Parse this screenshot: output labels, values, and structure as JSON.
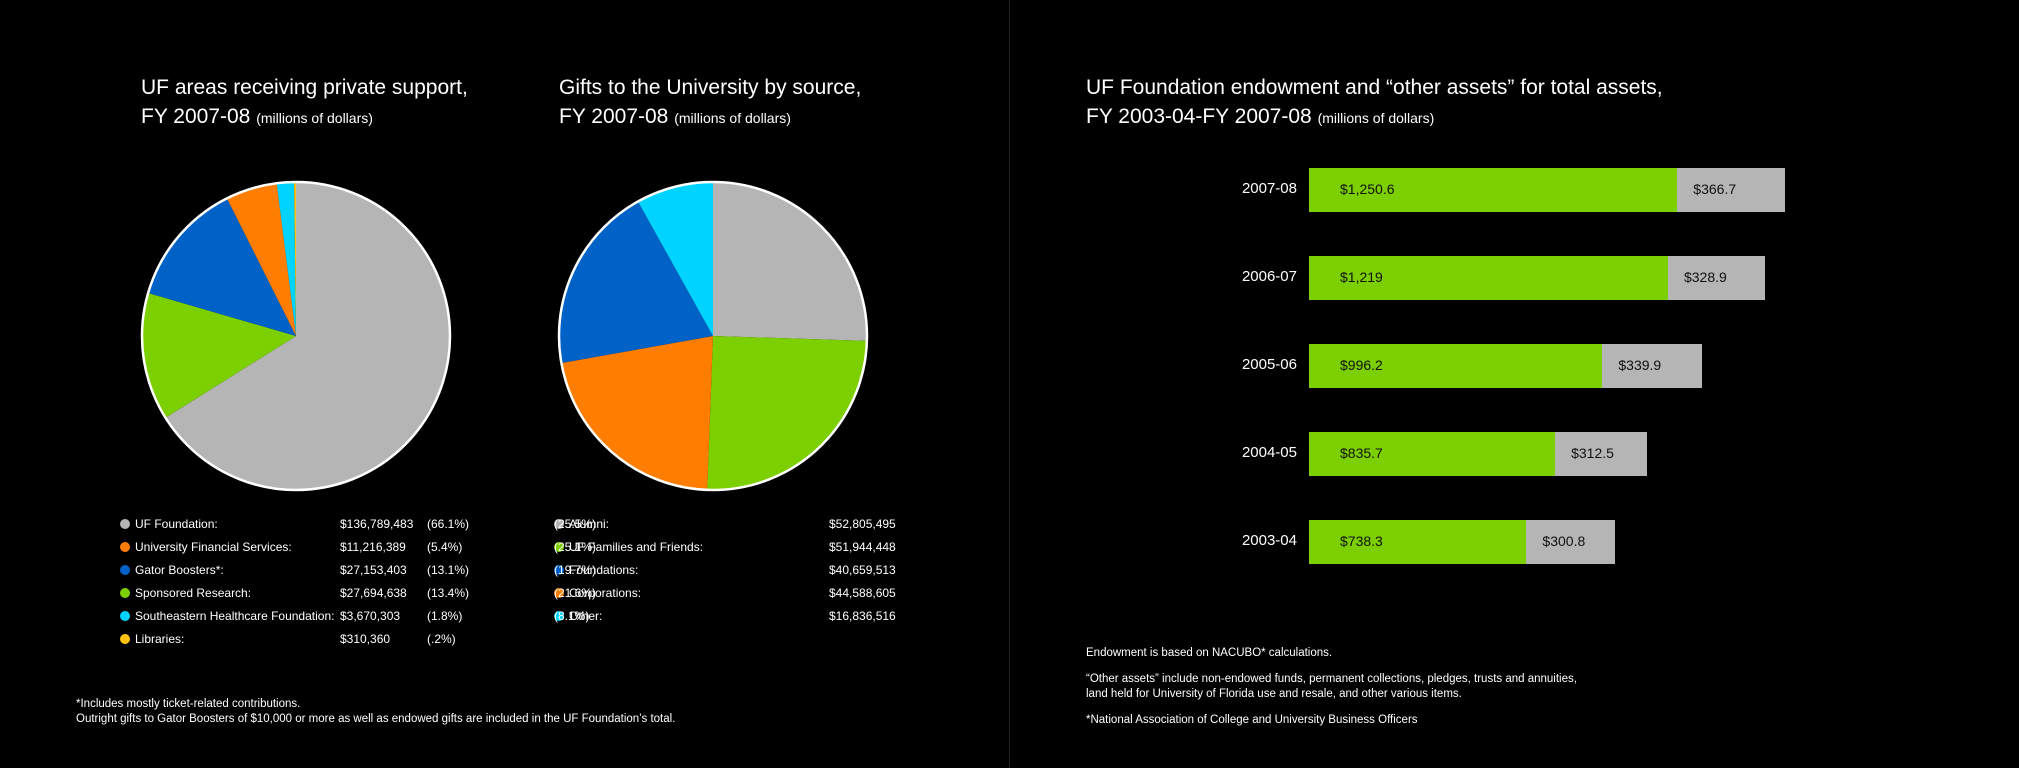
{
  "chart_data": [
    {
      "type": "pie",
      "title": "UF areas receiving private support,",
      "title_line2": "FY 2007-08",
      "unit": "(millions of dollars)",
      "slices": [
        {
          "label": "UF Foundation:",
          "amount": "$136,789,483",
          "pct": "(66.1%)",
          "value": 66.1,
          "color": "#b5b5b5"
        },
        {
          "label": "University Financial Services:",
          "amount": "$11,216,389",
          "pct": "(5.4%)",
          "value": 5.4,
          "color": "#ff7d00"
        },
        {
          "label": "Gator Boosters*:",
          "amount": "$27,153,403",
          "pct": "(13.1%)",
          "value": 13.1,
          "color": "#0062c7"
        },
        {
          "label": "Sponsored Research:",
          "amount": "$27,694,638",
          "pct": "(13.4%)",
          "value": 13.4,
          "color": "#7ccf00"
        },
        {
          "label": "Southeastern Healthcare Foundation:",
          "amount": "$3,670,303",
          "pct": "(1.8%)",
          "value": 1.8,
          "color": "#00d3ff"
        },
        {
          "label": "Libraries:",
          "amount": "$310,360",
          "pct": "(.2%)",
          "value": 0.2,
          "color": "#ffc20e"
        }
      ],
      "draw_order": [
        0,
        3,
        2,
        1,
        4,
        5
      ]
    },
    {
      "type": "pie",
      "title": "Gifts to the University by source,",
      "title_line2": "FY 2007-08",
      "unit": "(millions of dollars)",
      "slices": [
        {
          "label": "Alumni:",
          "amount": "$52,805,495",
          "pct": "(25.5%)",
          "value": 25.5,
          "color": "#b5b5b5"
        },
        {
          "label": "UF Families and Friends:",
          "amount": "$51,944,448",
          "pct": "(25.1%)",
          "value": 25.1,
          "color": "#7ccf00"
        },
        {
          "label": "Foundations:",
          "amount": "$40,659,513",
          "pct": "(19.7%)",
          "value": 19.7,
          "color": "#0062c7"
        },
        {
          "label": "Corporations:",
          "amount": "$44,588,605",
          "pct": "(21.6%)",
          "value": 21.6,
          "color": "#ff7d00"
        },
        {
          "label": "Other:",
          "amount": "$16,836,516",
          "pct": "(8.1%)",
          "value": 8.1,
          "color": "#00d3ff"
        }
      ],
      "draw_order": [
        0,
        1,
        3,
        2,
        4
      ]
    },
    {
      "type": "bar",
      "orientation": "horizontal",
      "stacked": true,
      "title": "UF Foundation endowment and “other assets” for total assets,",
      "title_line2": "FY 2003-04-FY 2007-08",
      "unit": "(millions of dollars)",
      "categories": [
        "2007-08",
        "2006-07",
        "2005-06",
        "2004-05",
        "2003-04"
      ],
      "series": [
        {
          "values": [
            1250.6,
            1219,
            996.2,
            835.7,
            738.3
          ],
          "labels": [
            "$1,250.6",
            "$1,219",
            "$996.2",
            "$835.7",
            "$738.3"
          ],
          "color": "#7ccf00"
        },
        {
          "values": [
            366.7,
            328.9,
            339.9,
            312.5,
            300.8
          ],
          "labels": [
            "$366.7",
            "$328.9",
            "$339.9",
            "$312.5",
            "$300.8"
          ],
          "color": "#b5b5b5"
        }
      ]
    }
  ],
  "footnotes": {
    "left_1": "*Includes mostly ticket-related contributions.",
    "left_2": "Outright gifts to Gator Boosters of $10,000 or more as well as endowed gifts are included in the UF Foundation’s total.",
    "right_1": "Endowment is based on NACUBO* calculations.",
    "right_2": "“Other assets” include non-endowed funds, permanent collections, pledges, trusts and annuities,",
    "right_3": "land held for University of Florida use and resale, and other various items.",
    "right_4": "*National Association of College and University Business Officers"
  }
}
